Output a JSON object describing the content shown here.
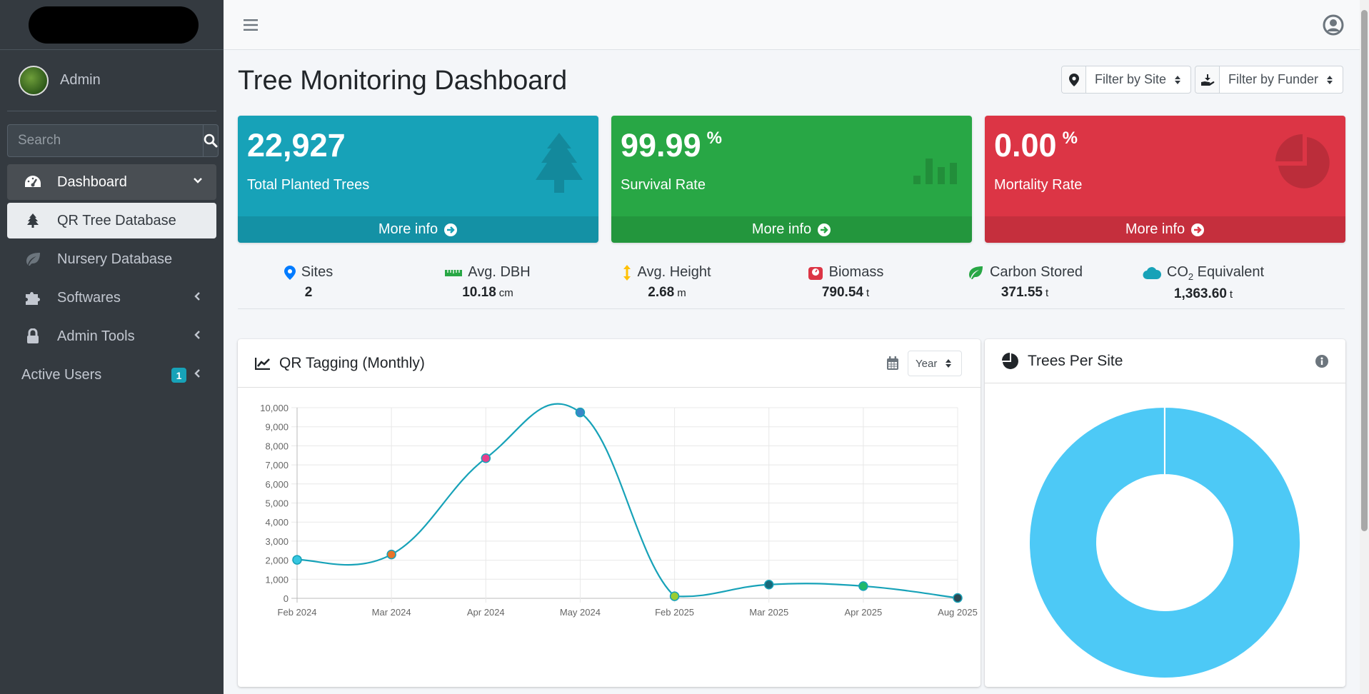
{
  "sidebar": {
    "user": "Admin",
    "search_placeholder": "Search",
    "items": [
      {
        "label": "Dashboard"
      },
      {
        "label": "QR Tree Database"
      },
      {
        "label": "Nursery Database"
      },
      {
        "label": "Softwares"
      },
      {
        "label": "Admin Tools"
      },
      {
        "label": "Active Users",
        "badge": "1"
      }
    ]
  },
  "header": {
    "title": "Tree Monitoring Dashboard",
    "filter_site": "Filter by Site",
    "filter_funder": "Filter by Funder"
  },
  "boxes": [
    {
      "value": "22,927",
      "unit": "",
      "label": "Total Planted Trees",
      "footer": "More info",
      "color": "#17a2b8",
      "icon": "tree-icon"
    },
    {
      "value": "99.99",
      "unit": "%",
      "label": "Survival Rate",
      "footer": "More info",
      "color": "#28a745",
      "icon": "bar-chart-icon"
    },
    {
      "value": "0.00",
      "unit": "%",
      "label": "Mortality Rate",
      "footer": "More info",
      "color": "#dc3545",
      "icon": "pie-chart-icon"
    }
  ],
  "stats": [
    {
      "label": "Sites",
      "value": "2",
      "unit": "",
      "icon": "map-pin-icon"
    },
    {
      "label": "Avg. DBH",
      "value": "10.18",
      "unit": "cm",
      "icon": "ruler-icon"
    },
    {
      "label": "Avg. Height",
      "value": "2.68",
      "unit": "m",
      "icon": "height-arrows-icon"
    },
    {
      "label": "Biomass",
      "value": "790.54",
      "unit": "t",
      "icon": "scale-icon"
    },
    {
      "label": "Carbon Stored",
      "value": "371.55",
      "unit": "t",
      "icon": "leaf-icon"
    },
    {
      "label_main": "CO",
      "label_sub": "2",
      "label_rest": " Equivalent",
      "value": "1,363.60",
      "unit": "t",
      "icon": "cloud-icon"
    }
  ],
  "qr_card": {
    "title": "QR Tagging (Monthly)",
    "period": "Year"
  },
  "site_card": {
    "title": "Trees Per Site"
  },
  "chart_data": [
    {
      "type": "line",
      "title": "QR Tagging (Monthly)",
      "x": [
        "Feb 2024",
        "Mar 2024",
        "Apr 2024",
        "May 2024",
        "Feb 2025",
        "Mar 2025",
        "Apr 2025",
        "Aug 2025"
      ],
      "y_ticks": [
        "0",
        "1,000",
        "2,000",
        "3,000",
        "4,000",
        "5,000",
        "6,000",
        "7,000",
        "8,000",
        "9,000",
        "10,000"
      ],
      "ylim": [
        0,
        10000
      ],
      "series": [
        {
          "values": [
            2020,
            2300,
            7350,
            9750,
            110,
            720,
            640,
            20
          ]
        }
      ],
      "point_colors": [
        "#36c6e0",
        "#e8742a",
        "#e83e8c",
        "#3a86c8",
        "#9acd32",
        "#17697a",
        "#1fb86b",
        "#2c4a55"
      ],
      "line_color": "#17a2b8"
    },
    {
      "type": "pie",
      "title": "Trees Per Site",
      "values": [
        22925,
        2
      ],
      "colors": [
        "#4dc9f6",
        "#4dc9f6"
      ]
    }
  ]
}
